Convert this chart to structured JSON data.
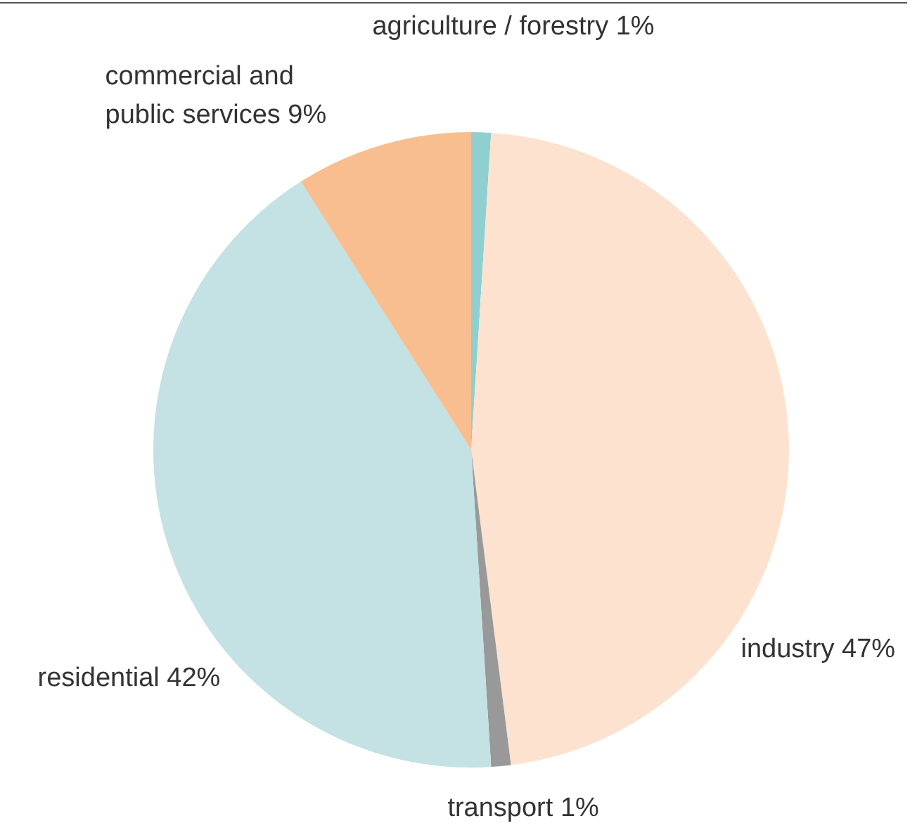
{
  "chart_data": {
    "type": "pie",
    "categories": [
      "agriculture / forestry",
      "industry",
      "transport",
      "residential",
      "commercial and public services"
    ],
    "values": [
      1,
      47,
      1,
      42,
      9
    ],
    "value_labels": [
      "1%",
      "47%",
      "1%",
      "42%",
      "9%"
    ],
    "colors": [
      "#8fcfcf",
      "#fde3cf",
      "#999999",
      "#c4e1e3",
      "#f9be8f"
    ]
  }
}
